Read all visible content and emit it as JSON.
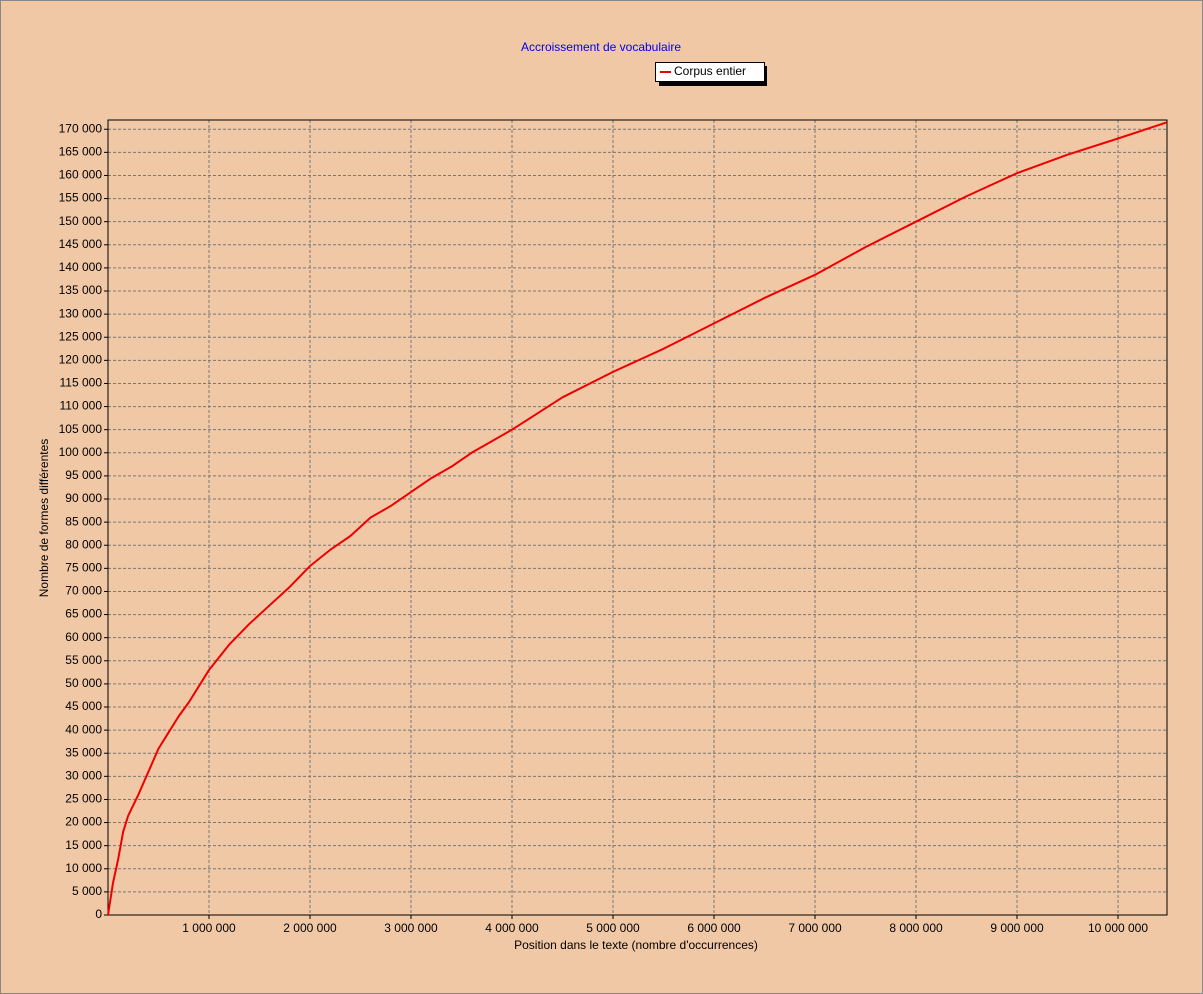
{
  "chart_data": {
    "type": "line",
    "title": "Accroissement de vocabulaire",
    "xlabel": "Position dans le texte (nombre d'occurrences)",
    "ylabel": "Nombre de formes différentes",
    "x": [
      0,
      50000,
      100000,
      150000,
      200000,
      300000,
      400000,
      500000,
      600000,
      700000,
      800000,
      900000,
      1000000,
      1200000,
      1400000,
      1600000,
      1800000,
      2000000,
      2200000,
      2400000,
      2600000,
      2800000,
      3000000,
      3200000,
      3400000,
      3600000,
      3800000,
      4000000,
      4500000,
      5000000,
      5500000,
      6000000,
      6500000,
      7000000,
      7500000,
      8000000,
      8500000,
      9000000,
      9500000,
      10000000,
      10485000
    ],
    "series": [
      {
        "name": "Corpus entier",
        "color": "#ee0000",
        "values": [
          0,
          7000,
          12000,
          18000,
          21500,
          26000,
          31000,
          36000,
          39500,
          43000,
          46000,
          49500,
          53000,
          58500,
          63000,
          67000,
          71000,
          75500,
          79000,
          82000,
          86000,
          88500,
          91500,
          94500,
          97000,
          100000,
          102500,
          105000,
          112000,
          117500,
          122500,
          128000,
          133500,
          138500,
          144500,
          150000,
          155500,
          160500,
          164500,
          168000,
          171500
        ]
      }
    ],
    "xlim": [
      0,
      10485000
    ],
    "ylim": [
      0,
      172000
    ],
    "xticks": [
      {
        "value": 1000000,
        "label": "1 000 000"
      },
      {
        "value": 2000000,
        "label": "2 000 000"
      },
      {
        "value": 3000000,
        "label": "3 000 000"
      },
      {
        "value": 4000000,
        "label": "4 000 000"
      },
      {
        "value": 5000000,
        "label": "5 000 000"
      },
      {
        "value": 6000000,
        "label": "6 000 000"
      },
      {
        "value": 7000000,
        "label": "7 000 000"
      },
      {
        "value": 8000000,
        "label": "8 000 000"
      },
      {
        "value": 9000000,
        "label": "9 000 000"
      },
      {
        "value": 10000000,
        "label": "10 000 000"
      }
    ],
    "yticks": [
      0,
      {
        "value": 5000,
        "label": "5 000"
      },
      {
        "value": 10000,
        "label": "10 000"
      },
      {
        "value": 15000,
        "label": "15 000"
      },
      {
        "value": 20000,
        "label": "20 000"
      },
      {
        "value": 25000,
        "label": "25 000"
      },
      {
        "value": 30000,
        "label": "30 000"
      },
      {
        "value": 35000,
        "label": "35 000"
      },
      {
        "value": 40000,
        "label": "40 000"
      },
      {
        "value": 45000,
        "label": "45 000"
      },
      {
        "value": 50000,
        "label": "50 000"
      },
      {
        "value": 55000,
        "label": "55 000"
      },
      {
        "value": 60000,
        "label": "60 000"
      },
      {
        "value": 65000,
        "label": "65 000"
      },
      {
        "value": 70000,
        "label": "70 000"
      },
      {
        "value": 75000,
        "label": "75 000"
      },
      {
        "value": 80000,
        "label": "80 000"
      },
      {
        "value": 85000,
        "label": "85 000"
      },
      {
        "value": 90000,
        "label": "90 000"
      },
      {
        "value": 95000,
        "label": "95 000"
      },
      {
        "value": 100000,
        "label": "100 000"
      },
      {
        "value": 105000,
        "label": "105 000"
      },
      {
        "value": 110000,
        "label": "110 000"
      },
      {
        "value": 115000,
        "label": "115 000"
      },
      {
        "value": 120000,
        "label": "120 000"
      },
      {
        "value": 125000,
        "label": "125 000"
      },
      {
        "value": 130000,
        "label": "130 000"
      },
      {
        "value": 135000,
        "label": "135 000"
      },
      {
        "value": 140000,
        "label": "140 000"
      },
      {
        "value": 145000,
        "label": "145 000"
      },
      {
        "value": 150000,
        "label": "150 000"
      },
      {
        "value": 155000,
        "label": "155 000"
      },
      {
        "value": 160000,
        "label": "160 000"
      },
      {
        "value": 165000,
        "label": "165 000"
      },
      {
        "value": 170000,
        "label": "170 000"
      }
    ],
    "grid": true
  }
}
